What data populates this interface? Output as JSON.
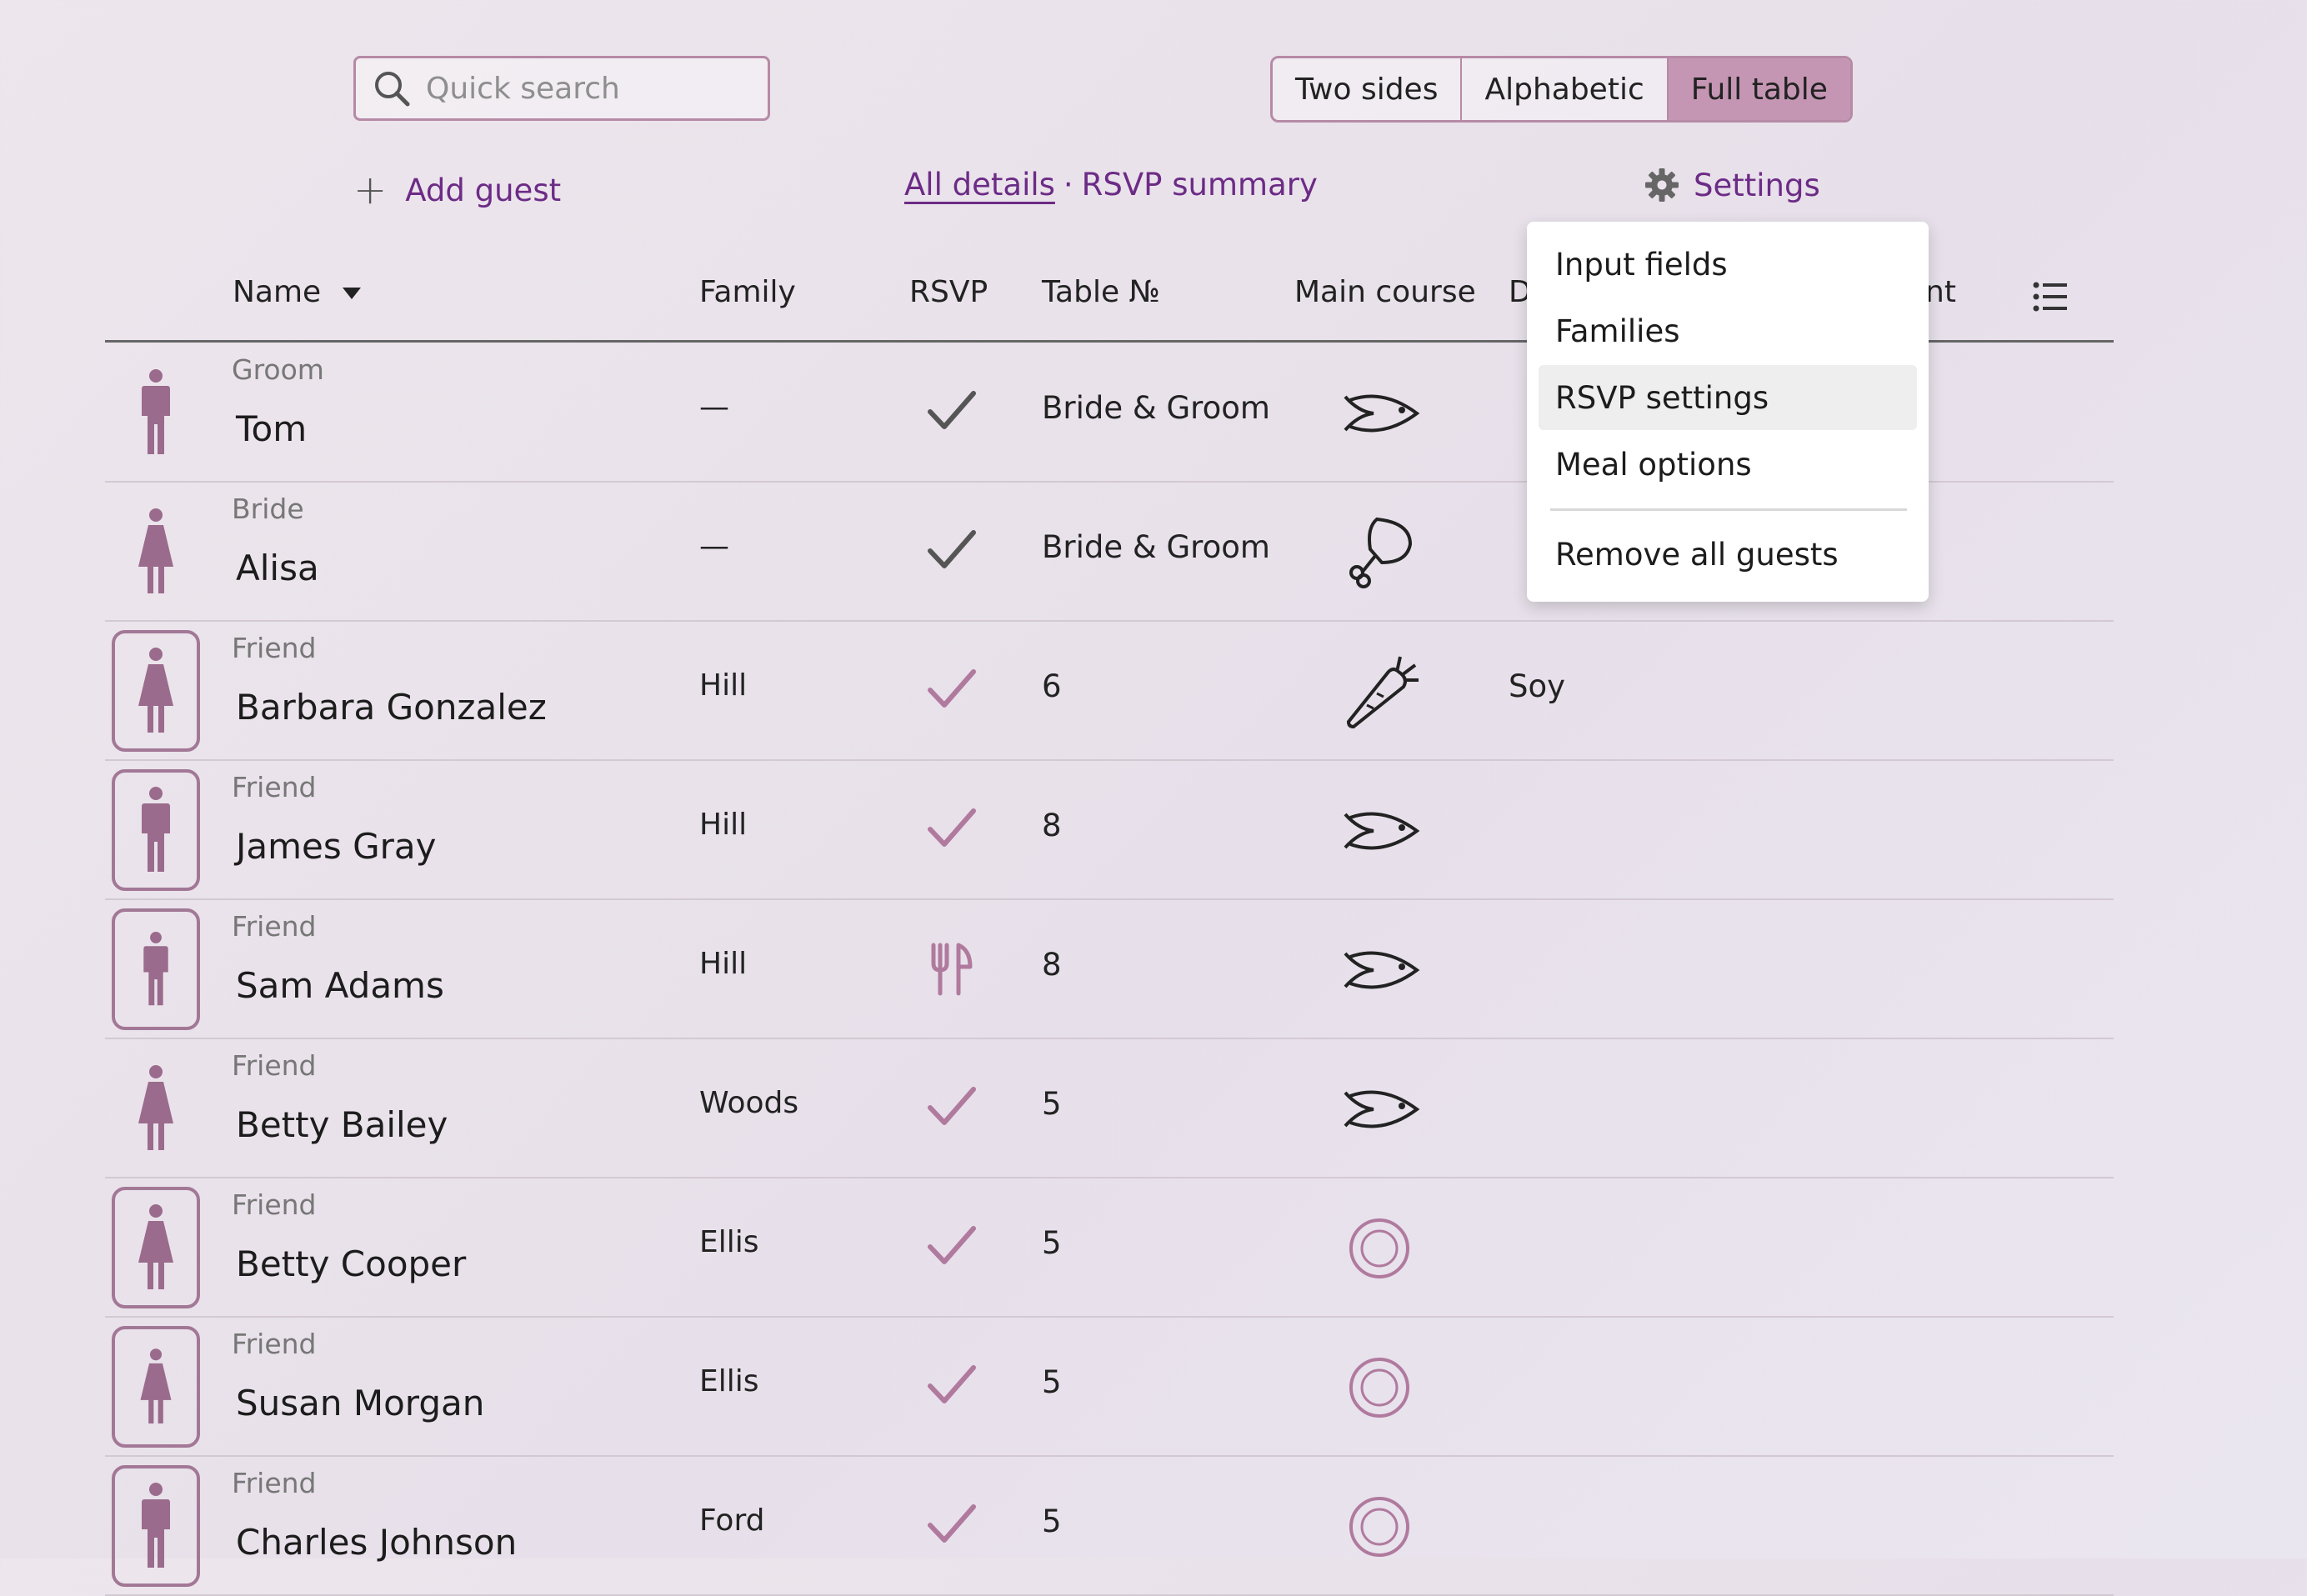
{
  "search": {
    "placeholder": "Quick search"
  },
  "view_modes": [
    {
      "label": "Two sides",
      "active": false
    },
    {
      "label": "Alphabetic",
      "active": false
    },
    {
      "label": "Full table",
      "active": true
    }
  ],
  "toolbar": {
    "add_guest": "Add guest",
    "all_details": "All details",
    "separator": "·",
    "rsvp_summary": "RSVP summary",
    "settings": "Settings"
  },
  "columns": {
    "name": "Name",
    "family": "Family",
    "rsvp": "RSVP",
    "table": "Table №",
    "main_course": "Main course",
    "diet_partial": "D",
    "extra_partial": "nt"
  },
  "guests": [
    {
      "role": "Groom",
      "name": "Tom",
      "family": "—",
      "rsvp": "accepted",
      "table": "Bride & Groom",
      "meal": "fish",
      "gender": "male",
      "diet": ""
    },
    {
      "role": "Bride",
      "name": "Alisa",
      "family": "—",
      "rsvp": "accepted",
      "table": "Bride & Groom",
      "meal": "meat",
      "gender": "female",
      "diet": ""
    },
    {
      "role": "Friend",
      "name": "Barbara Gonzalez",
      "family": "Hill",
      "rsvp": "accepted",
      "table": "6",
      "meal": "vegetarian",
      "gender": "female",
      "diet": "Soy"
    },
    {
      "role": "Friend",
      "name": "James Gray",
      "family": "Hill",
      "rsvp": "accepted",
      "table": "8",
      "meal": "fish",
      "gender": "male",
      "diet": ""
    },
    {
      "role": "Friend",
      "name": "Sam Adams",
      "family": "Hill",
      "rsvp": "meal-only",
      "table": "8",
      "meal": "fish",
      "gender": "male",
      "diet": ""
    },
    {
      "role": "Friend",
      "name": "Betty Bailey",
      "family": "Woods",
      "rsvp": "accepted",
      "table": "5",
      "meal": "fish",
      "gender": "female",
      "diet": ""
    },
    {
      "role": "Friend",
      "name": "Betty Cooper",
      "family": "Ellis",
      "rsvp": "accepted",
      "table": "5",
      "meal": "none",
      "gender": "female",
      "diet": ""
    },
    {
      "role": "Friend",
      "name": "Susan Morgan",
      "family": "Ellis",
      "rsvp": "accepted",
      "table": "5",
      "meal": "none",
      "gender": "female",
      "diet": ""
    },
    {
      "role": "Friend",
      "name": "Charles Johnson",
      "family": "Ford",
      "rsvp": "accepted",
      "table": "5",
      "meal": "none",
      "gender": "male",
      "diet": ""
    }
  ],
  "settings_menu": {
    "items": [
      "Input fields",
      "Families",
      "RSVP settings",
      "Meal options"
    ],
    "highlighted": "RSVP settings",
    "danger_item": "Remove all guests"
  },
  "colors": {
    "accent": "#6c2b86",
    "person_icon": "#9a6b8c",
    "active_segment": "#c596b3"
  }
}
